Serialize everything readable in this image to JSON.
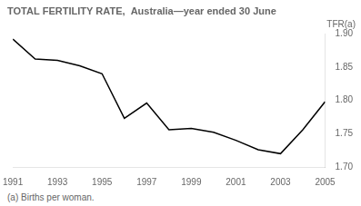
{
  "chart_data": {
    "type": "line",
    "title": "TOTAL FERTILITY RATE,  Australia—year ended 30 June",
    "ylabel": "TFR(a)",
    "footnote": "(a) Births per woman.",
    "x": [
      1991,
      1992,
      1993,
      1994,
      1995,
      1996,
      1997,
      1998,
      1999,
      2000,
      2001,
      2002,
      2003,
      2004,
      2005
    ],
    "values": [
      1.892,
      1.862,
      1.86,
      1.852,
      1.84,
      1.773,
      1.796,
      1.756,
      1.758,
      1.752,
      1.74,
      1.726,
      1.72,
      1.756,
      1.798
    ],
    "color": "#000000",
    "xlim": [
      1991,
      2005
    ],
    "xticks": [
      1991,
      1993,
      1995,
      1997,
      1999,
      2001,
      2003,
      2005
    ],
    "ylim": [
      1.7,
      1.9
    ],
    "yticks": [
      {
        "value": 1.7,
        "label": "1.70"
      },
      {
        "value": 1.75,
        "label": "1.75"
      },
      {
        "value": 1.8,
        "label": "1.80"
      },
      {
        "value": 1.85,
        "label": "1.85"
      },
      {
        "value": 1.9,
        "label": "1.90"
      }
    ],
    "grid": false
  }
}
